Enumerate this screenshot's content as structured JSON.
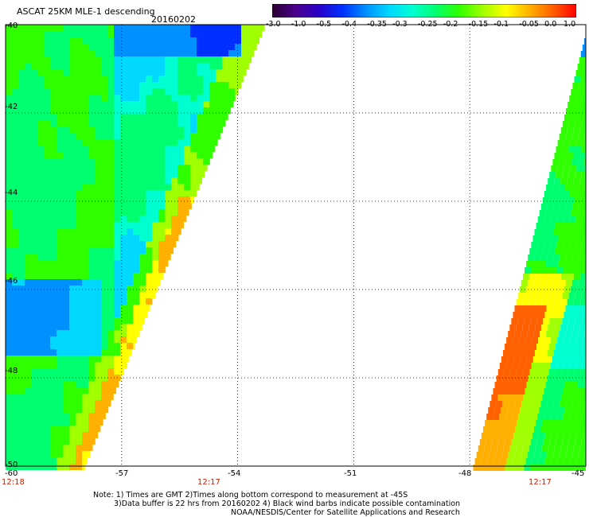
{
  "header": {
    "title": "ASCAT 25KM MLE-1 descending",
    "date": "20160202"
  },
  "colorbar": {
    "labels": [
      "-3.0",
      "-1.0",
      "-0.5",
      "-0.4",
      "-0.35",
      "-0.3",
      "-0.25",
      "-0.2",
      "-0.15",
      "-0.1",
      "-0.05",
      "0.0",
      "1.0"
    ],
    "colors": [
      "#2b0030",
      "#4a008a",
      "#2a00c8",
      "#0030ff",
      "#0090ff",
      "#00d8ff",
      "#00ffd0",
      "#00ff70",
      "#30ff00",
      "#a0ff00",
      "#ffff00",
      "#ffb000",
      "#ff6000",
      "#ff0000"
    ]
  },
  "map": {
    "lat_labels": [
      "-40",
      "-42",
      "-44",
      "-46",
      "-48",
      "-50"
    ],
    "lon_labels": [
      "-60",
      "-57",
      "-54",
      "-51",
      "-48",
      "-45"
    ],
    "time_labels": [
      "12:18",
      "12:17",
      "12:17"
    ],
    "lat_range": [
      -50,
      -40
    ],
    "lon_range": [
      -60,
      -45
    ]
  },
  "notes": {
    "line1": "Note: 1) Times are GMT 2)Times along bottom correspond to measurement at -45S",
    "line2": "3)Data buffer is 22 hrs from 20160202 4) Black wind barbs indicate possible contamination",
    "line3": "NOAA/NESDIS/Center for Satellite Applications and Research"
  }
}
